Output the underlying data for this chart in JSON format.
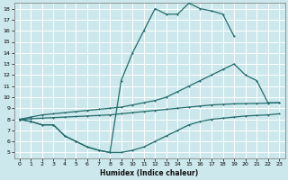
{
  "xlabel": "Humidex (Indice chaleur)",
  "xlim": [
    -0.5,
    23.5
  ],
  "ylim": [
    4.5,
    18.5
  ],
  "xticks": [
    0,
    1,
    2,
    3,
    4,
    5,
    6,
    7,
    8,
    9,
    10,
    11,
    12,
    13,
    14,
    15,
    16,
    17,
    18,
    19,
    20,
    21,
    22,
    23
  ],
  "yticks": [
    5,
    6,
    7,
    8,
    9,
    10,
    11,
    12,
    13,
    14,
    15,
    16,
    17,
    18
  ],
  "bg_color": "#cce8ec",
  "grid_color": "#ffffff",
  "line_color": "#236b6b",
  "curves": [
    {
      "x": [
        0,
        1,
        2,
        3,
        4,
        5,
        6,
        7,
        8,
        9,
        10,
        11,
        12,
        13,
        14,
        15,
        16,
        17,
        18,
        19
      ],
      "y": [
        8,
        7.8,
        7.5,
        7.5,
        6.5,
        6.0,
        5.5,
        5.2,
        5.0,
        11.5,
        14.0,
        16.0,
        18.0,
        17.5,
        17.5,
        18.5,
        18.0,
        17.8,
        17.5,
        15.5
      ]
    },
    {
      "x": [
        0,
        1,
        2,
        3,
        4,
        5,
        6,
        7,
        8,
        9,
        10,
        11,
        12,
        13,
        14,
        15,
        16,
        17,
        18,
        19,
        20,
        21,
        22,
        23
      ],
      "y": [
        8,
        8.2,
        8.4,
        8.5,
        8.6,
        8.7,
        8.8,
        8.9,
        9.0,
        9.1,
        9.3,
        9.5,
        9.7,
        10.0,
        10.5,
        11.0,
        11.5,
        12.0,
        12.5,
        13.0,
        12.0,
        11.5,
        9.5,
        9.5
      ]
    },
    {
      "x": [
        0,
        1,
        2,
        3,
        4,
        5,
        6,
        7,
        8,
        9,
        10,
        11,
        12,
        13,
        14,
        15,
        16,
        17,
        18,
        19,
        20,
        21,
        22,
        23
      ],
      "y": [
        8,
        8.05,
        8.1,
        8.15,
        8.2,
        8.25,
        8.3,
        8.35,
        8.4,
        8.5,
        8.6,
        8.7,
        8.8,
        8.9,
        9.0,
        9.1,
        9.2,
        9.3,
        9.35,
        9.4,
        9.42,
        9.44,
        9.46,
        9.5
      ]
    },
    {
      "x": [
        0,
        1,
        2,
        3,
        4,
        5,
        6,
        7,
        8,
        9,
        10,
        11,
        12,
        13,
        14,
        15,
        16,
        17,
        18,
        19,
        20,
        21,
        22,
        23
      ],
      "y": [
        8,
        7.8,
        7.5,
        7.5,
        6.5,
        6.0,
        5.5,
        5.2,
        5.0,
        5.0,
        5.2,
        5.5,
        6.0,
        6.5,
        7.0,
        7.5,
        7.8,
        8.0,
        8.1,
        8.2,
        8.3,
        8.35,
        8.4,
        8.5
      ]
    }
  ]
}
